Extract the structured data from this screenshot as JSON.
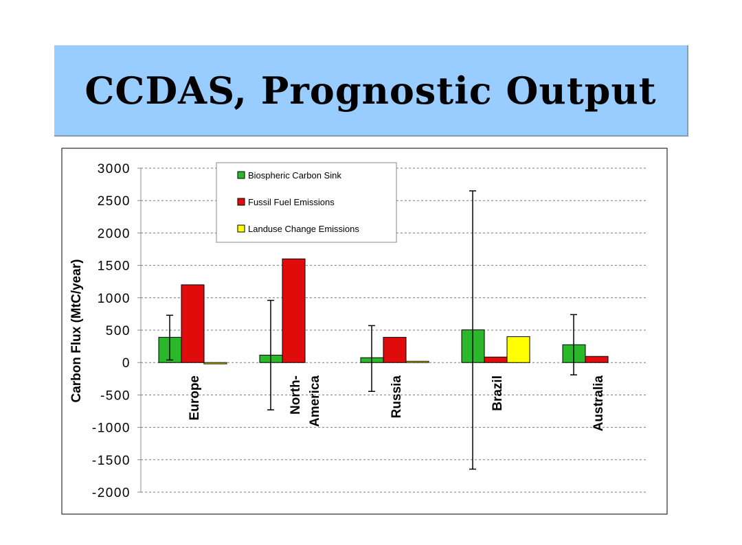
{
  "slide": {
    "title": "CCDAS, Prognostic Output"
  },
  "chart_data": {
    "type": "bar",
    "title": "",
    "xlabel": "",
    "ylabel": "Carbon Flux (MtC/year)",
    "ylim": [
      -2000,
      3000
    ],
    "yticks": [
      "3000",
      "2500",
      "2000",
      "1500",
      "1000",
      "500",
      "0",
      "-500",
      "-1000",
      "-1500",
      "-2000"
    ],
    "grid": true,
    "legend_position": "top-left",
    "categories": [
      [
        "Europe"
      ],
      [
        "North-",
        "America"
      ],
      [
        "Russia"
      ],
      [
        "Brazil"
      ],
      [
        "Australia"
      ]
    ],
    "series": [
      {
        "name": "Biospheric Carbon Sink",
        "color": "#2ab82a",
        "values": [
          390,
          115,
          75,
          505,
          275
        ],
        "error_low": [
          40,
          -730,
          -445,
          -1645,
          -190
        ],
        "error_high": [
          730,
          960,
          570,
          2650,
          740
        ]
      },
      {
        "name": "Fussil Fuel Emissions",
        "color": "#e00c0c",
        "values": [
          1200,
          1600,
          390,
          85,
          95
        ]
      },
      {
        "name": "Landuse Change Emissions",
        "color": "#ffff00",
        "values": [
          -20,
          null,
          20,
          400,
          null
        ]
      }
    ]
  }
}
